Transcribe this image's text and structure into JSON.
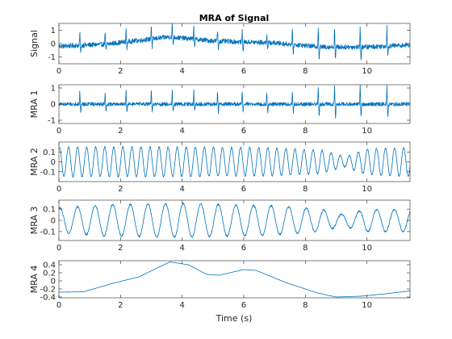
{
  "chart_data": {
    "type": "line",
    "title": "MRA of Signal",
    "xlabel": "Time (s)",
    "xlim": [
      0,
      11.4
    ],
    "xticks": [
      0,
      2,
      4,
      6,
      8,
      10
    ],
    "line_color": "#0072BD",
    "grid": false,
    "subplots": [
      {
        "ylabel": "Signal",
        "ylim": [
          -1.5,
          1.5
        ],
        "yticks": [
          -1,
          0,
          1
        ],
        "baseline": [
          [
            0,
            -0.2
          ],
          [
            1.5,
            -0.05
          ],
          [
            3.6,
            0.5
          ],
          [
            5,
            0.2
          ],
          [
            7,
            0.05
          ],
          [
            8.5,
            -0.25
          ],
          [
            10,
            -0.25
          ],
          [
            11.4,
            -0.1
          ]
        ],
        "noise": 0.18,
        "spike_times": [
          0.68,
          1.5,
          2.18,
          3.0,
          3.68,
          4.38,
          5.15,
          5.95,
          6.75,
          7.58,
          8.42,
          8.95,
          9.78,
          10.65
        ],
        "spike_up": [
          0.9,
          0.9,
          0.9,
          1.0,
          1.0,
          0.9,
          0.8,
          0.8,
          0.7,
          1.0,
          1.5,
          1.5,
          1.5,
          1.5
        ],
        "spike_down": [
          -0.6,
          -0.5,
          -0.5,
          -0.6,
          -0.5,
          -0.5,
          -0.6,
          -0.6,
          -0.5,
          -0.6,
          -0.9,
          -0.9,
          -0.9,
          -0.8
        ]
      },
      {
        "ylabel": "MRA 1",
        "ylim": [
          -1.2,
          1.2
        ],
        "yticks": [
          -1,
          0,
          1
        ],
        "baseline": [
          [
            0,
            0
          ],
          [
            11.4,
            0
          ]
        ],
        "noise": 0.12,
        "spike_times": [
          0.68,
          1.5,
          2.18,
          3.0,
          3.68,
          4.38,
          5.15,
          5.95,
          6.75,
          7.58,
          8.42,
          8.95,
          9.78,
          10.65
        ],
        "spike_up": [
          0.8,
          0.7,
          0.8,
          0.8,
          0.8,
          0.8,
          0.7,
          0.7,
          0.7,
          0.8,
          1.1,
          1.2,
          1.2,
          1.1
        ],
        "spike_down": [
          -0.5,
          -0.5,
          -0.5,
          -0.5,
          -0.5,
          -0.5,
          -0.5,
          -0.5,
          -0.5,
          -0.5,
          -0.8,
          -0.9,
          -0.8,
          -0.8
        ]
      },
      {
        "ylabel": "MRA 2",
        "ylim": [
          -0.2,
          0.2
        ],
        "yticks": [
          -0.1,
          0,
          0.1
        ],
        "oscillation": {
          "freq": 3.4,
          "amp_points": [
            [
              0,
              0.15
            ],
            [
              4,
              0.15
            ],
            [
              7,
              0.14
            ],
            [
              8.5,
              0.12
            ],
            [
              9.3,
              0.05
            ],
            [
              10,
              0.13
            ],
            [
              11.4,
              0.15
            ]
          ]
        }
      },
      {
        "ylabel": "MRA 3",
        "ylim": [
          -0.18,
          0.18
        ],
        "yticks": [
          -0.1,
          0,
          0.1
        ],
        "oscillation": {
          "freq": 1.75,
          "amp_points": [
            [
              0,
              0.11
            ],
            [
              1.5,
              0.14
            ],
            [
              4,
              0.15
            ],
            [
              7,
              0.13
            ],
            [
              8.5,
              0.1
            ],
            [
              9.2,
              0.05
            ],
            [
              10,
              0.1
            ],
            [
              11.4,
              0.1
            ]
          ]
        }
      },
      {
        "ylabel": "MRA 4",
        "ylim": [
          -0.42,
          0.5
        ],
        "yticks": [
          -0.4,
          -0.2,
          0,
          0.2,
          0.4
        ],
        "curve": [
          [
            0,
            -0.28
          ],
          [
            0.8,
            -0.27
          ],
          [
            1.8,
            -0.05
          ],
          [
            2.6,
            0.1
          ],
          [
            3.6,
            0.47
          ],
          [
            4.2,
            0.4
          ],
          [
            4.8,
            0.16
          ],
          [
            5.2,
            0.14
          ],
          [
            6.0,
            0.28
          ],
          [
            6.4,
            0.26
          ],
          [
            7.4,
            -0.05
          ],
          [
            8.4,
            -0.3
          ],
          [
            9.0,
            -0.4
          ],
          [
            9.8,
            -0.38
          ],
          [
            10.6,
            -0.32
          ],
          [
            11.4,
            -0.25
          ]
        ]
      }
    ]
  }
}
